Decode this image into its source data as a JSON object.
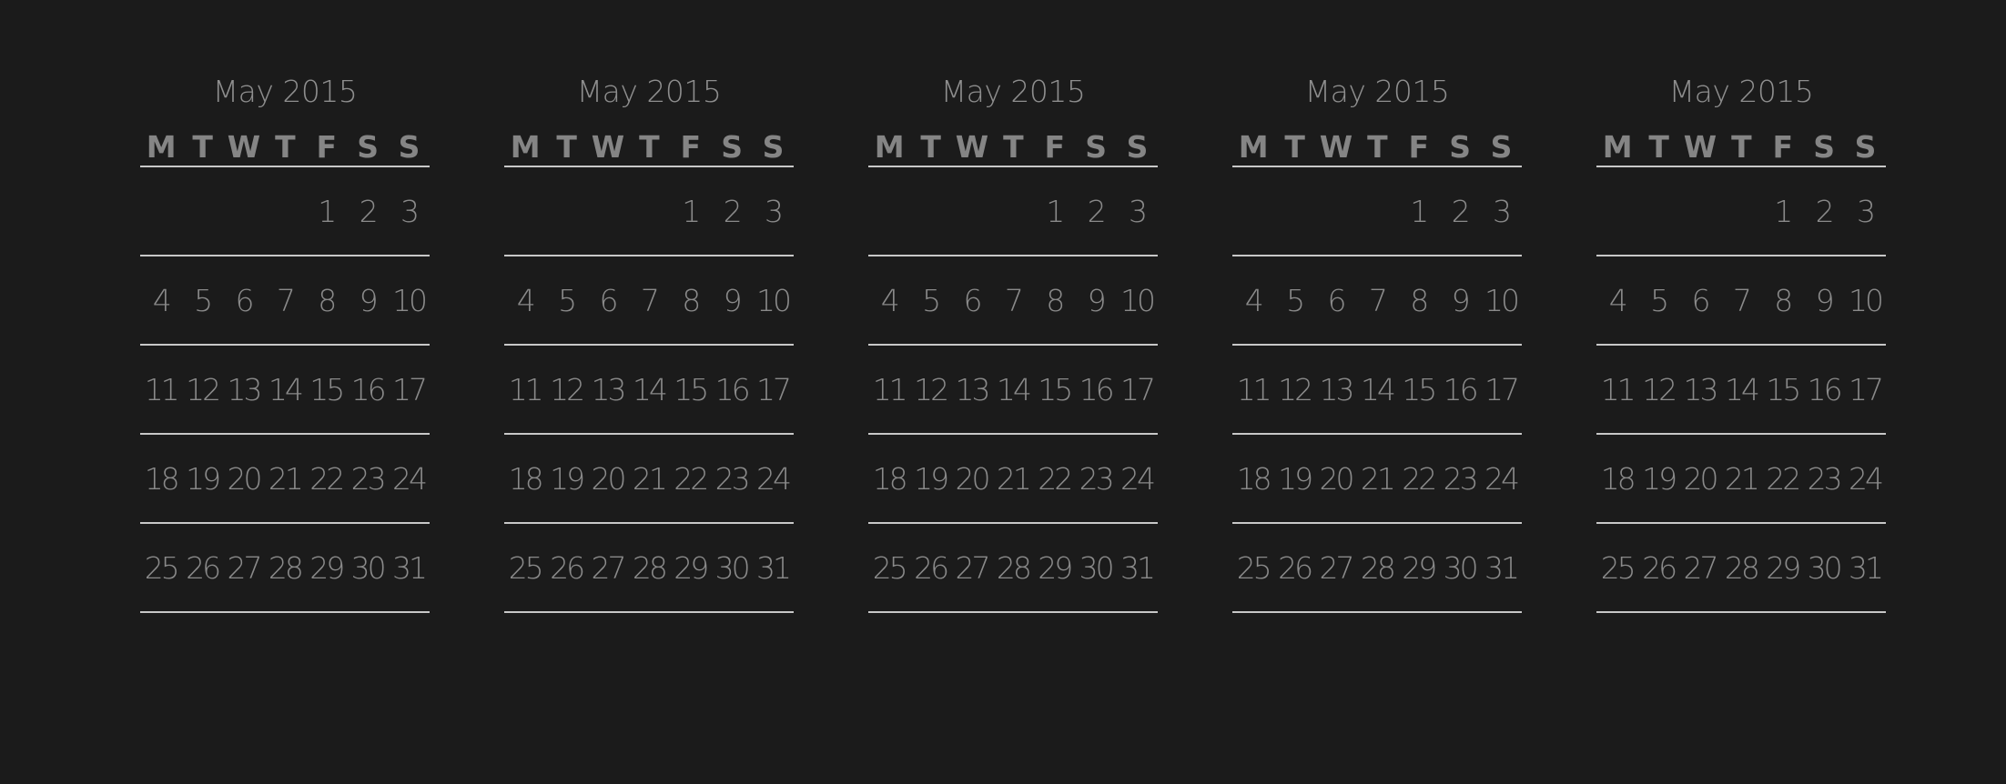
{
  "calendars": [
    {
      "title": "May 2015"
    },
    {
      "title": "May 2015"
    },
    {
      "title": "May 2015"
    },
    {
      "title": "May 2015"
    },
    {
      "title": "May 2015"
    }
  ],
  "weekdays": [
    "M",
    "T",
    "W",
    "T",
    "F",
    "S",
    "S"
  ],
  "weeks": [
    [
      "",
      "",
      "",
      "",
      "1",
      "2",
      "3"
    ],
    [
      "4",
      "5",
      "6",
      "7",
      "8",
      "9",
      "10"
    ],
    [
      "11",
      "12",
      "13",
      "14",
      "15",
      "16",
      "17"
    ],
    [
      "18",
      "19",
      "20",
      "21",
      "22",
      "23",
      "24"
    ],
    [
      "25",
      "26",
      "27",
      "28",
      "29",
      "30",
      "31"
    ]
  ],
  "colors": {
    "background": "#1b1b1b",
    "text": "#8a8a8a",
    "rule": "#c8c8c8"
  }
}
